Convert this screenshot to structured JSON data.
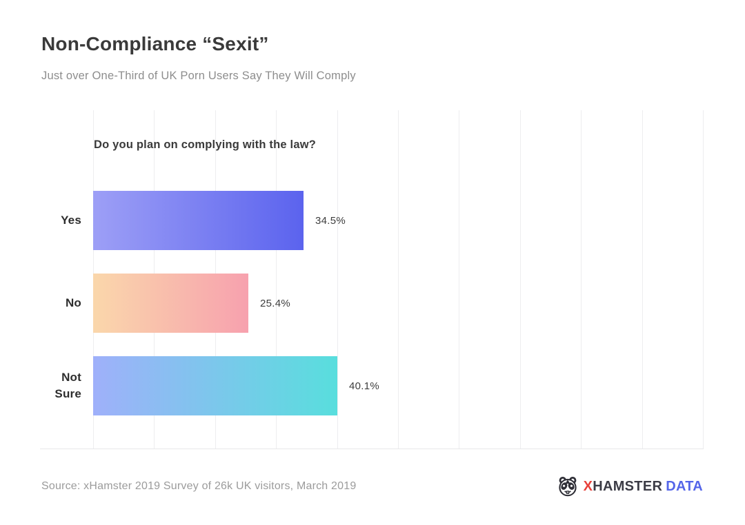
{
  "page": {
    "title": "Non-Compliance “Sexit”",
    "subtitle": "Just over One-Third of UK Porn Users Say They Will Comply",
    "source": "Source: xHamster 2019 Survey of 26k UK visitors, March 2019"
  },
  "logo": {
    "icon": "hamster-face-icon",
    "part_x": "X",
    "part_hamster": "HAMSTER",
    "part_data": "DATA",
    "colors": {
      "x": "#e8403a",
      "hamster": "#3b3b45",
      "data": "#5465e9"
    }
  },
  "chart_data": {
    "type": "bar",
    "orientation": "horizontal",
    "title": "Do you plan on complying with the law?",
    "categories": [
      "Yes",
      "No",
      "Not Sure"
    ],
    "values": [
      34.5,
      25.4,
      40.1
    ],
    "value_labels": [
      "34.5%",
      "25.4%",
      "40.1%"
    ],
    "xlabel": "",
    "ylabel": "",
    "xlim": [
      0,
      100
    ],
    "grid": true,
    "gridline_interval_pct": 10,
    "gridline_color": "#ededef",
    "legend": false,
    "bar_gradients": [
      {
        "from": "#9d9ff6",
        "to": "#5b63ee"
      },
      {
        "from": "#fad7ab",
        "to": "#f7a1ae"
      },
      {
        "from": "#9fb0fa",
        "to": "#58dedd"
      }
    ]
  }
}
